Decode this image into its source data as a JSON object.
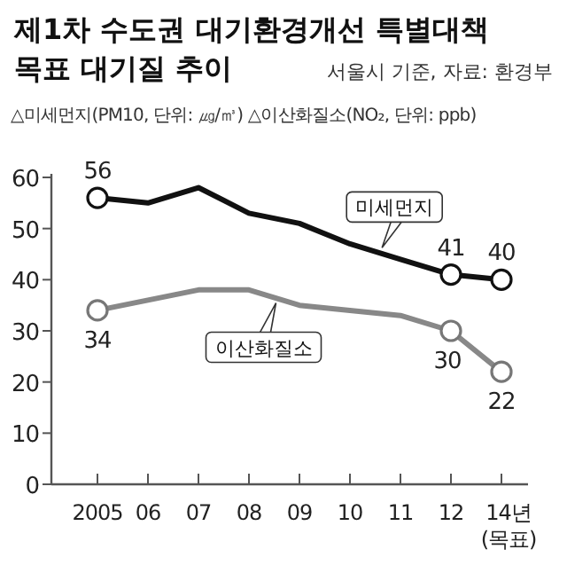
{
  "chart_data": {
    "type": "line",
    "title": "제1차 수도권 대기환경개선 특별대책 목표 대기질 추이",
    "subtitle": "서울시 기준, 자료: 환경부",
    "annotations": [
      "△미세먼지(PM10, 단위: ㎍/㎥) △이산화질소(NO₂, 단위: ppb)"
    ],
    "categories": [
      "2005",
      "06",
      "07",
      "08",
      "09",
      "10",
      "11",
      "12",
      "14년 (목표)"
    ],
    "series": [
      {
        "name": "미세먼지",
        "color": "#111111",
        "values": [
          56,
          55,
          58,
          53,
          51,
          47,
          44,
          41,
          40
        ],
        "value_labels": [
          "56",
          null,
          null,
          null,
          null,
          null,
          null,
          "41",
          "40"
        ]
      },
      {
        "name": "이산화질소",
        "color": "#888888",
        "values": [
          34,
          36,
          38,
          38,
          35,
          34,
          33,
          30,
          22
        ],
        "value_labels": [
          "34",
          null,
          null,
          null,
          null,
          null,
          null,
          "30",
          "22"
        ]
      }
    ],
    "ylim": [
      0,
      60
    ],
    "yticks": [
      0,
      10,
      20,
      30,
      40,
      50,
      60
    ],
    "grid": false
  }
}
